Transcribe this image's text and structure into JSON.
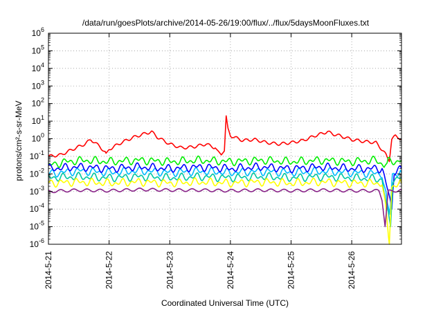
{
  "chart_data": {
    "type": "line",
    "title": "/data/run/goesPlots/archive/2014-05-26/19:00/flux/../flux/5daysMoonFluxes.txt",
    "xlabel": "Coordinated Universal Time (UTC)",
    "ylabel": "protons/cm²-s-sr-MeV",
    "yscale": "log",
    "ylim": [
      1e-06,
      1000000.0
    ],
    "xlim": [
      0,
      5.82
    ],
    "grid": true,
    "x_ticks": [
      {
        "label": "2014-5-21",
        "value": 0
      },
      {
        "label": "2014-5-22",
        "value": 1
      },
      {
        "label": "2014-5-23",
        "value": 2
      },
      {
        "label": "2014-5-24",
        "value": 3
      },
      {
        "label": "2014-5-25",
        "value": 4
      },
      {
        "label": "2014-5-26",
        "value": 5
      }
    ],
    "y_ticks": [
      {
        "label": "10",
        "exp": "-6",
        "value": -6
      },
      {
        "label": "10",
        "exp": "-5",
        "value": -5
      },
      {
        "label": "10",
        "exp": "-4",
        "value": -4
      },
      {
        "label": "10",
        "exp": "-3",
        "value": -3
      },
      {
        "label": "10",
        "exp": "-2",
        "value": -2
      },
      {
        "label": "10",
        "exp": "-1",
        "value": -1
      },
      {
        "label": "10",
        "exp": "0",
        "value": 0
      },
      {
        "label": "10",
        "exp": "1",
        "value": 1
      },
      {
        "label": "10",
        "exp": "2",
        "value": 2
      },
      {
        "label": "10",
        "exp": "3",
        "value": 3
      },
      {
        "label": "10",
        "exp": "4",
        "value": 4
      },
      {
        "label": "10",
        "exp": "5",
        "value": 5
      },
      {
        "label": "10",
        "exp": "6",
        "value": 6
      }
    ],
    "series": [
      {
        "color": "#ff0000",
        "values": [
          [
            0.0,
            0.1
          ],
          [
            0.2,
            0.12
          ],
          [
            0.4,
            0.25
          ],
          [
            0.6,
            0.5
          ],
          [
            0.7,
            0.9
          ],
          [
            0.85,
            0.35
          ],
          [
            0.95,
            0.15
          ],
          [
            1.0,
            0.25
          ],
          [
            1.2,
            0.6
          ],
          [
            1.4,
            1.2
          ],
          [
            1.6,
            2.0
          ],
          [
            1.7,
            2.5
          ],
          [
            1.8,
            1.2
          ],
          [
            2.0,
            0.5
          ],
          [
            2.2,
            0.3
          ],
          [
            2.4,
            0.35
          ],
          [
            2.6,
            0.5
          ],
          [
            2.75,
            0.3
          ],
          [
            2.8,
            0.2
          ],
          [
            2.85,
            0.12
          ],
          [
            2.9,
            0.2
          ],
          [
            2.93,
            20
          ],
          [
            2.96,
            4
          ],
          [
            3.0,
            1.5
          ],
          [
            3.2,
            0.8
          ],
          [
            3.4,
            0.9
          ],
          [
            3.6,
            0.6
          ],
          [
            3.8,
            0.5
          ],
          [
            4.0,
            0.6
          ],
          [
            4.2,
            0.8
          ],
          [
            4.4,
            1.5
          ],
          [
            4.6,
            2.5
          ],
          [
            4.7,
            1.8
          ],
          [
            4.8,
            1.5
          ],
          [
            5.0,
            0.9
          ],
          [
            5.2,
            0.7
          ],
          [
            5.4,
            0.6
          ],
          [
            5.52,
            0.2
          ],
          [
            5.58,
            0.1
          ],
          [
            5.62,
            0.05
          ],
          [
            5.66,
            1.0
          ],
          [
            5.72,
            1.4
          ],
          [
            5.82,
            1.0
          ]
        ]
      },
      {
        "color": "#00ee00",
        "values": [
          [
            0.0,
            0.03
          ],
          [
            0.3,
            0.05
          ],
          [
            0.6,
            0.06
          ],
          [
            1.0,
            0.05
          ],
          [
            1.5,
            0.06
          ],
          [
            2.0,
            0.05
          ],
          [
            2.5,
            0.06
          ],
          [
            3.0,
            0.05
          ],
          [
            3.5,
            0.06
          ],
          [
            4.0,
            0.05
          ],
          [
            4.5,
            0.06
          ],
          [
            5.0,
            0.05
          ],
          [
            5.4,
            0.06
          ],
          [
            5.55,
            0.03
          ],
          [
            5.6,
            0.05
          ],
          [
            5.7,
            0.05
          ],
          [
            5.82,
            0.06
          ]
        ]
      },
      {
        "color": "#00bbff",
        "values": [
          [
            0.0,
            0.01
          ],
          [
            0.5,
            0.015
          ],
          [
            1.0,
            0.012
          ],
          [
            1.5,
            0.015
          ],
          [
            2.0,
            0.012
          ],
          [
            2.5,
            0.014
          ],
          [
            3.0,
            0.012
          ],
          [
            3.5,
            0.014
          ],
          [
            4.0,
            0.012
          ],
          [
            4.5,
            0.014
          ],
          [
            5.0,
            0.012
          ],
          [
            5.5,
            0.01
          ],
          [
            5.58,
            0.0003
          ],
          [
            5.63,
            5e-05
          ],
          [
            5.67,
            0.01
          ],
          [
            5.82,
            0.012
          ]
        ]
      },
      {
        "color": "#0000ff",
        "values": [
          [
            0.0,
            0.02
          ],
          [
            0.5,
            0.025
          ],
          [
            1.0,
            0.02
          ],
          [
            1.5,
            0.025
          ],
          [
            2.0,
            0.02
          ],
          [
            2.5,
            0.025
          ],
          [
            3.0,
            0.02
          ],
          [
            3.5,
            0.025
          ],
          [
            4.0,
            0.02
          ],
          [
            4.5,
            0.025
          ],
          [
            5.0,
            0.02
          ],
          [
            5.5,
            0.02
          ],
          [
            5.6,
            0.001
          ],
          [
            5.66,
            0.0001
          ],
          [
            5.7,
            0.015
          ],
          [
            5.82,
            0.02
          ]
        ]
      },
      {
        "color": "#00c8a0",
        "values": [
          [
            0.0,
            0.006
          ],
          [
            0.5,
            0.007
          ],
          [
            1.0,
            0.006
          ],
          [
            1.5,
            0.007
          ],
          [
            2.0,
            0.006
          ],
          [
            2.5,
            0.007
          ],
          [
            3.0,
            0.006
          ],
          [
            3.5,
            0.007
          ],
          [
            4.0,
            0.006
          ],
          [
            4.5,
            0.007
          ],
          [
            5.0,
            0.006
          ],
          [
            5.5,
            0.005
          ],
          [
            5.58,
            0.0001
          ],
          [
            5.64,
            1e-05
          ],
          [
            5.68,
            0.005
          ],
          [
            5.82,
            0.006
          ]
        ]
      },
      {
        "color": "#ffff00",
        "values": [
          [
            0.0,
            0.003
          ],
          [
            0.5,
            0.0035
          ],
          [
            1.0,
            0.003
          ],
          [
            1.5,
            0.0035
          ],
          [
            2.0,
            0.003
          ],
          [
            2.5,
            0.0035
          ],
          [
            3.0,
            0.003
          ],
          [
            3.5,
            0.0035
          ],
          [
            4.0,
            0.003
          ],
          [
            4.5,
            0.0035
          ],
          [
            5.0,
            0.003
          ],
          [
            5.5,
            0.003
          ],
          [
            5.56,
            0.0001
          ],
          [
            5.62,
            1e-06
          ],
          [
            5.66,
            0.002
          ],
          [
            5.82,
            0.003
          ]
        ]
      },
      {
        "color": "#882288",
        "values": [
          [
            0.0,
            0.001
          ],
          [
            0.5,
            0.0012
          ],
          [
            1.0,
            0.0011
          ],
          [
            1.5,
            0.0013
          ],
          [
            2.0,
            0.0012
          ],
          [
            2.5,
            0.0012
          ],
          [
            3.0,
            0.0011
          ],
          [
            3.5,
            0.0012
          ],
          [
            4.0,
            0.0011
          ],
          [
            4.5,
            0.0012
          ],
          [
            5.0,
            0.0011
          ],
          [
            5.45,
            0.0011
          ],
          [
            5.5,
            0.0003
          ],
          [
            5.55,
            1e-05
          ],
          [
            5.6,
            0.001
          ],
          [
            5.82,
            0.0012
          ]
        ]
      }
    ]
  }
}
